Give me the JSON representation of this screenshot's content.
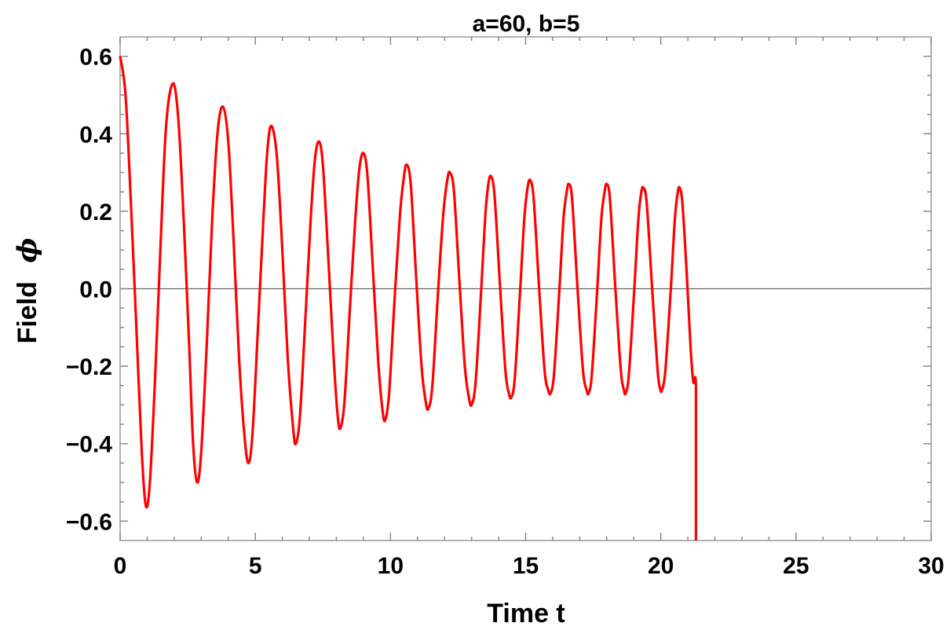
{
  "chart_data": {
    "type": "line",
    "title": "a=60, b=5",
    "xlabel": "Time t",
    "ylabel": "Field",
    "ylabel_symbol": "ϕ",
    "xlim": [
      0,
      30
    ],
    "ylim": [
      -0.65,
      0.65
    ],
    "x_ticks": [
      "0",
      "5",
      "10",
      "15",
      "20",
      "25",
      "30"
    ],
    "y_ticks": [
      "0.6",
      "0.4",
      "0.2",
      "0.0",
      "−0.2",
      "−0.4",
      "−0.6"
    ],
    "grid": false,
    "series": [
      {
        "color": "#ff0000",
        "points": [
          [
            0.0,
            0.6
          ],
          [
            0.2,
            0.5
          ],
          [
            0.4,
            0.22
          ],
          [
            0.6,
            -0.1
          ],
          [
            0.8,
            -0.42
          ],
          [
            0.95,
            -0.56
          ],
          [
            1.1,
            -0.5
          ],
          [
            1.3,
            -0.22
          ],
          [
            1.5,
            0.12
          ],
          [
            1.7,
            0.42
          ],
          [
            1.95,
            0.53
          ],
          [
            2.15,
            0.44
          ],
          [
            2.35,
            0.18
          ],
          [
            2.55,
            -0.14
          ],
          [
            2.7,
            -0.4
          ],
          [
            2.85,
            -0.5
          ],
          [
            3.0,
            -0.42
          ],
          [
            3.2,
            -0.15
          ],
          [
            3.4,
            0.17
          ],
          [
            3.6,
            0.4
          ],
          [
            3.8,
            0.47
          ],
          [
            4.0,
            0.38
          ],
          [
            4.2,
            0.12
          ],
          [
            4.4,
            -0.18
          ],
          [
            4.6,
            -0.38
          ],
          [
            4.75,
            -0.45
          ],
          [
            4.9,
            -0.37
          ],
          [
            5.1,
            -0.1
          ],
          [
            5.3,
            0.18
          ],
          [
            5.45,
            0.36
          ],
          [
            5.6,
            0.42
          ],
          [
            5.8,
            0.34
          ],
          [
            6.0,
            0.1
          ],
          [
            6.2,
            -0.18
          ],
          [
            6.4,
            -0.36
          ],
          [
            6.5,
            -0.4
          ],
          [
            6.65,
            -0.33
          ],
          [
            6.85,
            -0.08
          ],
          [
            7.05,
            0.18
          ],
          [
            7.2,
            0.33
          ],
          [
            7.35,
            0.38
          ],
          [
            7.5,
            0.32
          ],
          [
            7.7,
            0.08
          ],
          [
            7.9,
            -0.18
          ],
          [
            8.05,
            -0.33
          ],
          [
            8.15,
            -0.36
          ],
          [
            8.3,
            -0.29
          ],
          [
            8.5,
            -0.05
          ],
          [
            8.7,
            0.18
          ],
          [
            8.85,
            0.31
          ],
          [
            9.0,
            0.35
          ],
          [
            9.15,
            0.29
          ],
          [
            9.35,
            0.05
          ],
          [
            9.55,
            -0.19
          ],
          [
            9.7,
            -0.31
          ],
          [
            9.8,
            -0.34
          ],
          [
            9.95,
            -0.27
          ],
          [
            10.15,
            -0.03
          ],
          [
            10.35,
            0.19
          ],
          [
            10.5,
            0.29
          ],
          [
            10.6,
            0.32
          ],
          [
            10.75,
            0.27
          ],
          [
            10.95,
            0.03
          ],
          [
            11.15,
            -0.2
          ],
          [
            11.3,
            -0.29
          ],
          [
            11.4,
            -0.31
          ],
          [
            11.55,
            -0.25
          ],
          [
            11.75,
            -0.02
          ],
          [
            11.95,
            0.19
          ],
          [
            12.1,
            0.28
          ],
          [
            12.2,
            0.3
          ],
          [
            12.35,
            0.25
          ],
          [
            12.55,
            0.02
          ],
          [
            12.75,
            -0.2
          ],
          [
            12.9,
            -0.28
          ],
          [
            13.0,
            -0.3
          ],
          [
            13.15,
            -0.24
          ],
          [
            13.35,
            -0.01
          ],
          [
            13.5,
            0.18
          ],
          [
            13.62,
            0.27
          ],
          [
            13.72,
            0.29
          ],
          [
            13.85,
            0.24
          ],
          [
            14.05,
            0.01
          ],
          [
            14.25,
            -0.21
          ],
          [
            14.38,
            -0.27
          ],
          [
            14.47,
            -0.28
          ],
          [
            14.6,
            -0.23
          ],
          [
            14.8,
            0.0
          ],
          [
            14.95,
            0.18
          ],
          [
            15.07,
            0.26
          ],
          [
            15.17,
            0.28
          ],
          [
            15.3,
            0.23
          ],
          [
            15.5,
            0.0
          ],
          [
            15.7,
            -0.21
          ],
          [
            15.83,
            -0.26
          ],
          [
            15.92,
            -0.27
          ],
          [
            16.05,
            -0.22
          ],
          [
            16.25,
            0.0
          ],
          [
            16.4,
            0.18
          ],
          [
            16.52,
            0.25
          ],
          [
            16.6,
            0.27
          ],
          [
            16.72,
            0.23
          ],
          [
            16.92,
            0.0
          ],
          [
            17.12,
            -0.21
          ],
          [
            17.25,
            -0.26
          ],
          [
            17.33,
            -0.27
          ],
          [
            17.45,
            -0.22
          ],
          [
            17.65,
            0.0
          ],
          [
            17.8,
            0.18
          ],
          [
            17.92,
            0.25
          ],
          [
            18.0,
            0.27
          ],
          [
            18.12,
            0.23
          ],
          [
            18.32,
            0.0
          ],
          [
            18.52,
            -0.21
          ],
          [
            18.63,
            -0.26
          ],
          [
            18.7,
            -0.27
          ],
          [
            18.82,
            -0.22
          ],
          [
            19.02,
            0.0
          ],
          [
            19.17,
            0.18
          ],
          [
            19.28,
            0.25
          ],
          [
            19.36,
            0.26
          ],
          [
            19.48,
            0.22
          ],
          [
            19.68,
            0.0
          ],
          [
            19.88,
            -0.21
          ],
          [
            19.98,
            -0.26
          ],
          [
            20.05,
            -0.26
          ],
          [
            20.17,
            -0.21
          ],
          [
            20.37,
            0.0
          ],
          [
            20.52,
            0.18
          ],
          [
            20.63,
            0.25
          ],
          [
            20.7,
            0.26
          ],
          [
            20.8,
            0.22
          ],
          [
            20.95,
            0.05
          ],
          [
            21.1,
            -0.15
          ],
          [
            21.2,
            -0.24
          ],
          [
            21.3,
            -0.26
          ],
          [
            21.3,
            -0.65
          ]
        ]
      }
    ]
  }
}
